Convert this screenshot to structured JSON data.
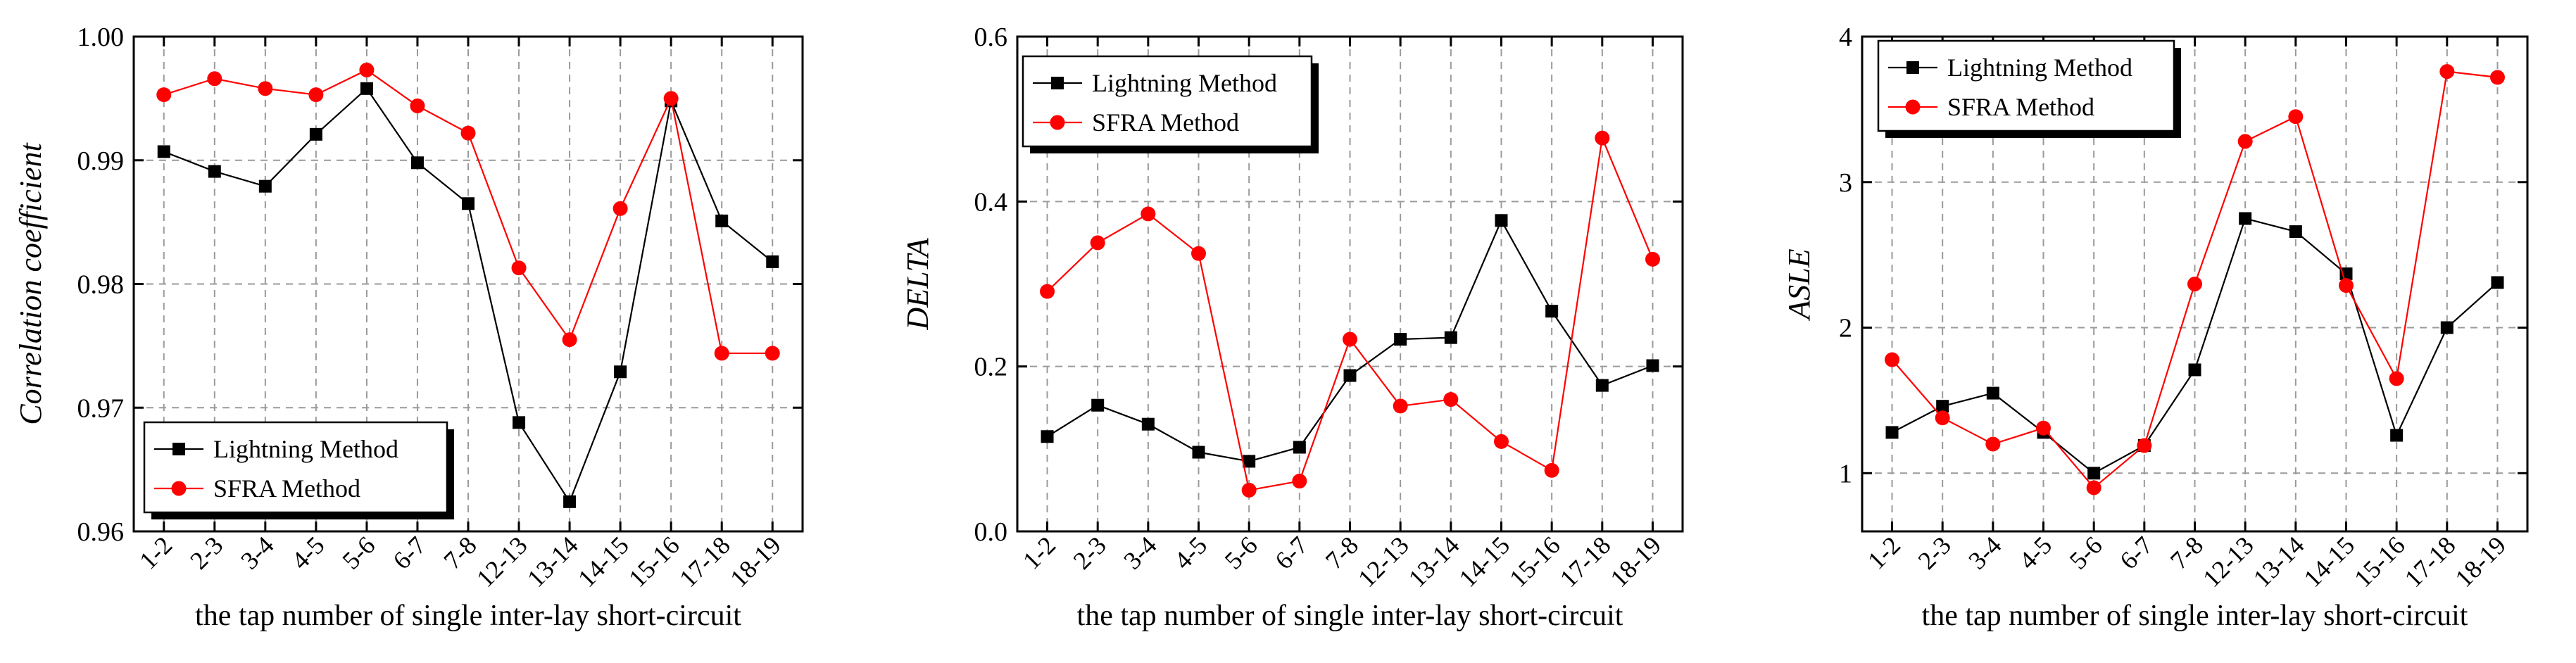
{
  "chart_data": [
    {
      "type": "line",
      "title": "",
      "xlabel": "the tap number of single inter-lay short-circuit",
      "ylabel": "Correlation coefficient",
      "categories": [
        "1-2",
        "2-3",
        "3-4",
        "4-5",
        "5-6",
        "6-7",
        "7-8",
        "12-13",
        "13-14",
        "14-15",
        "15-16",
        "17-18",
        "18-19"
      ],
      "ylim": [
        0.96,
        1.0
      ],
      "yticks": [
        "0.96",
        "0.97",
        "0.98",
        "0.99",
        "1.00"
      ],
      "grid": true,
      "legend_position": "bottom-left",
      "series": [
        {
          "name": "Lightning Method",
          "color": "#000000",
          "marker": "square",
          "values": [
            0.9907,
            0.9891,
            0.9879,
            0.9921,
            0.9958,
            0.9898,
            0.9865,
            0.9688,
            0.9624,
            0.9729,
            0.9948,
            0.9851,
            0.9818
          ]
        },
        {
          "name": "SFRA Method",
          "color": "#ff0000",
          "marker": "circle",
          "values": [
            0.9953,
            0.9966,
            0.9958,
            0.9953,
            0.9973,
            0.9944,
            0.9922,
            0.9813,
            0.9755,
            0.9861,
            0.995,
            0.9744,
            0.9744
          ]
        }
      ]
    },
    {
      "type": "line",
      "title": "",
      "xlabel": "the tap number of single inter-lay short-circuit",
      "ylabel": "DELTA",
      "categories": [
        "1-2",
        "2-3",
        "3-4",
        "4-5",
        "5-6",
        "6-7",
        "7-8",
        "12-13",
        "13-14",
        "14-15",
        "15-16",
        "17-18",
        "18-19"
      ],
      "ylim": [
        0.0,
        0.6
      ],
      "yticks": [
        "0.0",
        "0.2",
        "0.4",
        "0.6"
      ],
      "grid": true,
      "legend_position": "top-left",
      "series": [
        {
          "name": "Lightning Method",
          "color": "#000000",
          "marker": "square",
          "values": [
            0.115,
            0.153,
            0.13,
            0.096,
            0.085,
            0.102,
            0.189,
            0.233,
            0.235,
            0.377,
            0.267,
            0.177,
            0.201
          ]
        },
        {
          "name": "SFRA Method",
          "color": "#ff0000",
          "marker": "circle",
          "values": [
            0.291,
            0.35,
            0.385,
            0.337,
            0.05,
            0.061,
            0.233,
            0.152,
            0.16,
            0.109,
            0.074,
            0.477,
            0.33
          ]
        }
      ]
    },
    {
      "type": "line",
      "title": "",
      "xlabel": "the tap number of single inter-lay short-circuit",
      "ylabel": "ASLE",
      "categories": [
        "1-2",
        "2-3",
        "3-4",
        "4-5",
        "5-6",
        "6-7",
        "7-8",
        "12-13",
        "13-14",
        "14-15",
        "15-16",
        "17-18",
        "18-19"
      ],
      "ylim": [
        0.6,
        4.0
      ],
      "yticks": [
        "1",
        "2",
        "3",
        "4"
      ],
      "grid": true,
      "legend_position": "top-left",
      "series": [
        {
          "name": "Lightning Method",
          "color": "#000000",
          "marker": "square",
          "values": [
            1.28,
            1.46,
            1.55,
            1.28,
            1.0,
            1.19,
            1.71,
            2.75,
            2.66,
            2.37,
            1.26,
            2.0,
            2.31
          ]
        },
        {
          "name": "SFRA Method",
          "color": "#ff0000",
          "marker": "circle",
          "values": [
            1.78,
            1.38,
            1.2,
            1.31,
            0.9,
            1.19,
            2.3,
            3.28,
            3.45,
            2.29,
            1.65,
            3.76,
            3.72
          ]
        }
      ]
    }
  ]
}
